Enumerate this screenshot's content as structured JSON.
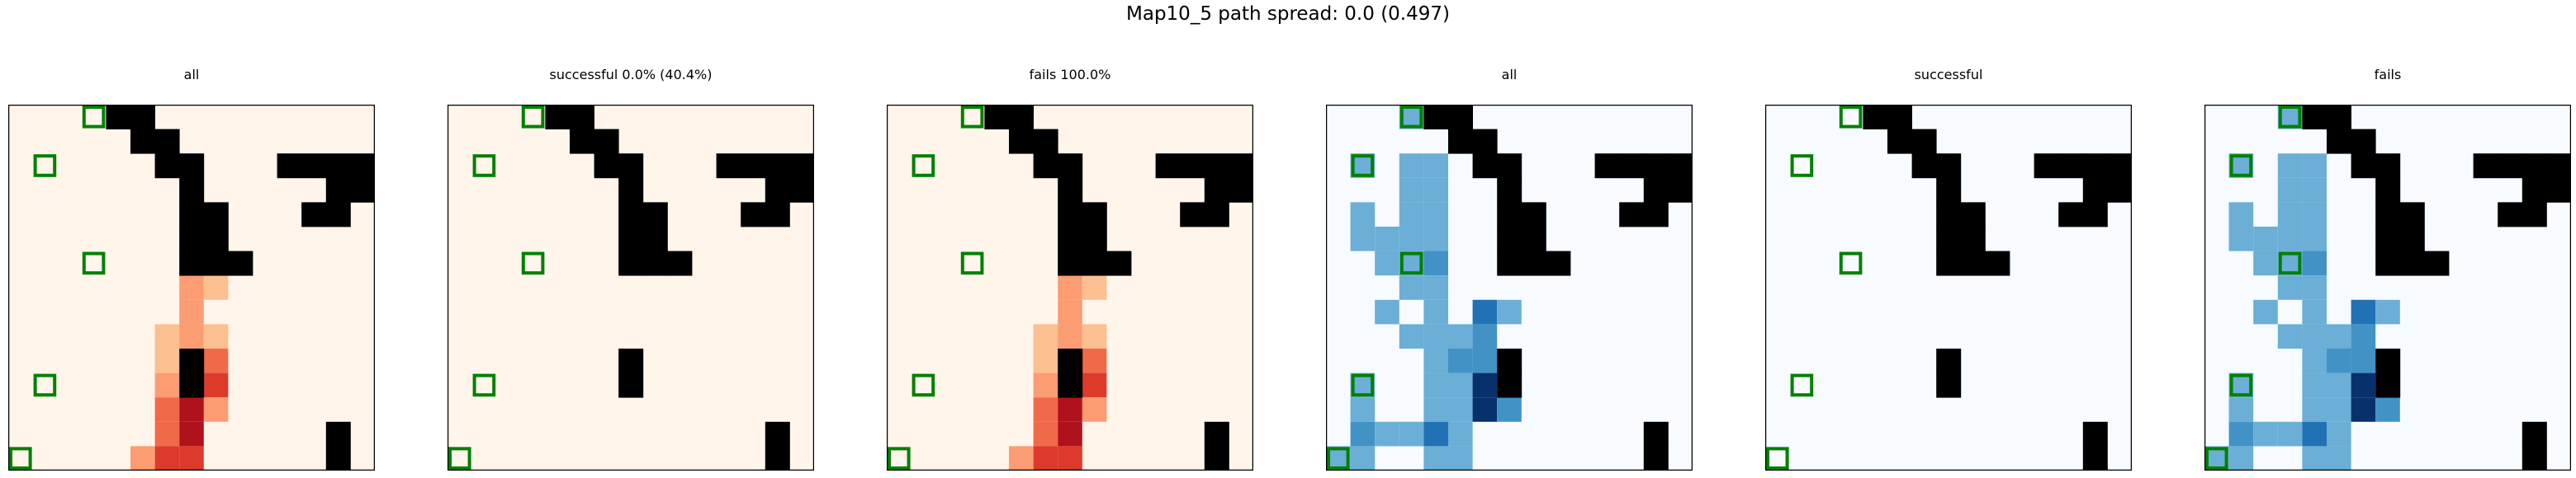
{
  "figure": {
    "suptitle": "Map10_5 path spread: 0.0 (0.497)"
  },
  "colors": {
    "wall": "#000000",
    "goal_marker": "#008000",
    "frame": "#000000"
  },
  "chart_data": [
    {
      "type": "heatmap",
      "title": "all",
      "colormap": "Oranges/Reds",
      "grid_size": [
        15,
        15
      ],
      "walls": [
        [
          4,
          0
        ],
        [
          5,
          0
        ],
        [
          5,
          1
        ],
        [
          6,
          1
        ],
        [
          11,
          2
        ],
        [
          12,
          2
        ],
        [
          13,
          2
        ],
        [
          14,
          2
        ],
        [
          6,
          2
        ],
        [
          7,
          2
        ],
        [
          13,
          3
        ],
        [
          14,
          3
        ],
        [
          7,
          3
        ],
        [
          7,
          4
        ],
        [
          8,
          4
        ],
        [
          12,
          4
        ],
        [
          13,
          4
        ],
        [
          7,
          5
        ],
        [
          8,
          5
        ],
        [
          7,
          6
        ],
        [
          8,
          6
        ],
        [
          9,
          6
        ],
        [
          7,
          10
        ],
        [
          7,
          11
        ],
        [
          13,
          13
        ],
        [
          13,
          14
        ]
      ],
      "goal_markers": [
        [
          3,
          0
        ],
        [
          1,
          2
        ],
        [
          3,
          6
        ],
        [
          1,
          11
        ],
        [
          0,
          14
        ]
      ],
      "cells": [
        [
          7,
          7,
          0.25
        ],
        [
          7,
          8,
          0.25
        ],
        [
          8,
          7,
          0.12
        ],
        [
          6,
          9,
          0.15
        ],
        [
          6,
          10,
          0.15
        ],
        [
          7,
          9,
          0.25
        ],
        [
          8,
          9,
          0.15
        ],
        [
          8,
          10,
          0.55
        ],
        [
          8,
          11,
          0.6
        ],
        [
          8,
          12,
          0.35
        ],
        [
          6,
          11,
          0.25
        ],
        [
          6,
          12,
          0.55
        ],
        [
          6,
          13,
          0.55
        ],
        [
          6,
          14,
          0.6
        ],
        [
          7,
          12,
          0.85
        ],
        [
          7,
          13,
          0.85
        ],
        [
          7,
          14,
          0.7
        ],
        [
          5,
          14,
          0.25
        ]
      ]
    },
    {
      "type": "heatmap",
      "title": "successful 0.0% (40.4%)",
      "colormap": "Oranges/Reds",
      "grid_size": [
        15,
        15
      ],
      "walls": [
        [
          4,
          0
        ],
        [
          5,
          0
        ],
        [
          5,
          1
        ],
        [
          6,
          1
        ],
        [
          11,
          2
        ],
        [
          12,
          2
        ],
        [
          13,
          2
        ],
        [
          14,
          2
        ],
        [
          6,
          2
        ],
        [
          7,
          2
        ],
        [
          13,
          3
        ],
        [
          14,
          3
        ],
        [
          7,
          3
        ],
        [
          7,
          4
        ],
        [
          8,
          4
        ],
        [
          12,
          4
        ],
        [
          13,
          4
        ],
        [
          7,
          5
        ],
        [
          8,
          5
        ],
        [
          7,
          6
        ],
        [
          8,
          6
        ],
        [
          9,
          6
        ],
        [
          7,
          10
        ],
        [
          7,
          11
        ],
        [
          13,
          13
        ],
        [
          13,
          14
        ]
      ],
      "goal_markers": [
        [
          3,
          0
        ],
        [
          1,
          2
        ],
        [
          3,
          6
        ],
        [
          1,
          11
        ],
        [
          0,
          14
        ]
      ],
      "cells": []
    },
    {
      "type": "heatmap",
      "title": "fails 100.0%",
      "colormap": "Oranges/Reds",
      "grid_size": [
        15,
        15
      ],
      "walls": [
        [
          4,
          0
        ],
        [
          5,
          0
        ],
        [
          5,
          1
        ],
        [
          6,
          1
        ],
        [
          11,
          2
        ],
        [
          12,
          2
        ],
        [
          13,
          2
        ],
        [
          14,
          2
        ],
        [
          6,
          2
        ],
        [
          7,
          2
        ],
        [
          13,
          3
        ],
        [
          14,
          3
        ],
        [
          7,
          3
        ],
        [
          7,
          4
        ],
        [
          8,
          4
        ],
        [
          12,
          4
        ],
        [
          13,
          4
        ],
        [
          7,
          5
        ],
        [
          8,
          5
        ],
        [
          7,
          6
        ],
        [
          8,
          6
        ],
        [
          9,
          6
        ],
        [
          7,
          10
        ],
        [
          7,
          11
        ],
        [
          13,
          13
        ],
        [
          13,
          14
        ]
      ],
      "goal_markers": [
        [
          3,
          0
        ],
        [
          1,
          2
        ],
        [
          3,
          6
        ],
        [
          1,
          11
        ],
        [
          0,
          14
        ]
      ],
      "cells": [
        [
          7,
          7,
          0.25
        ],
        [
          7,
          8,
          0.25
        ],
        [
          8,
          7,
          0.12
        ],
        [
          6,
          9,
          0.15
        ],
        [
          6,
          10,
          0.15
        ],
        [
          7,
          9,
          0.25
        ],
        [
          8,
          9,
          0.15
        ],
        [
          8,
          10,
          0.55
        ],
        [
          8,
          11,
          0.6
        ],
        [
          8,
          12,
          0.35
        ],
        [
          6,
          11,
          0.25
        ],
        [
          6,
          12,
          0.55
        ],
        [
          6,
          13,
          0.55
        ],
        [
          6,
          14,
          0.6
        ],
        [
          7,
          12,
          0.85
        ],
        [
          7,
          13,
          0.85
        ],
        [
          7,
          14,
          0.7
        ],
        [
          5,
          14,
          0.25
        ]
      ]
    },
    {
      "type": "heatmap",
      "title": "all",
      "colormap": "Blues",
      "grid_size": [
        15,
        15
      ],
      "walls": [
        [
          4,
          0
        ],
        [
          5,
          0
        ],
        [
          5,
          1
        ],
        [
          6,
          1
        ],
        [
          11,
          2
        ],
        [
          12,
          2
        ],
        [
          13,
          2
        ],
        [
          14,
          2
        ],
        [
          6,
          2
        ],
        [
          7,
          2
        ],
        [
          13,
          3
        ],
        [
          14,
          3
        ],
        [
          7,
          3
        ],
        [
          7,
          4
        ],
        [
          8,
          4
        ],
        [
          12,
          4
        ],
        [
          13,
          4
        ],
        [
          7,
          5
        ],
        [
          8,
          5
        ],
        [
          7,
          6
        ],
        [
          8,
          6
        ],
        [
          9,
          6
        ],
        [
          7,
          10
        ],
        [
          7,
          11
        ],
        [
          13,
          13
        ],
        [
          13,
          14
        ]
      ],
      "goal_markers": [
        [
          3,
          0
        ],
        [
          1,
          2
        ],
        [
          3,
          6
        ],
        [
          1,
          11
        ],
        [
          0,
          14
        ]
      ],
      "cells": [
        [
          3,
          0,
          0.25
        ],
        [
          1,
          2,
          0.25
        ],
        [
          3,
          2,
          0.25
        ],
        [
          4,
          2,
          0.25
        ],
        [
          3,
          3,
          0.25
        ],
        [
          4,
          3,
          0.25
        ],
        [
          1,
          4,
          0.25
        ],
        [
          3,
          4,
          0.25
        ],
        [
          4,
          4,
          0.25
        ],
        [
          1,
          5,
          0.25
        ],
        [
          2,
          5,
          0.25
        ],
        [
          3,
          5,
          0.25
        ],
        [
          4,
          5,
          0.25
        ],
        [
          2,
          6,
          0.25
        ],
        [
          3,
          6,
          0.25
        ],
        [
          4,
          6,
          0.55
        ],
        [
          3,
          7,
          0.25
        ],
        [
          4,
          7,
          0.25
        ],
        [
          2,
          8,
          0.25
        ],
        [
          4,
          8,
          0.25
        ],
        [
          6,
          8,
          0.7
        ],
        [
          7,
          8,
          0.25
        ],
        [
          3,
          9,
          0.25
        ],
        [
          4,
          9,
          0.25
        ],
        [
          5,
          9,
          0.25
        ],
        [
          6,
          9,
          0.5
        ],
        [
          4,
          10,
          0.25
        ],
        [
          5,
          10,
          0.5
        ],
        [
          6,
          10,
          0.5
        ],
        [
          1,
          11,
          0.25
        ],
        [
          4,
          11,
          0.25
        ],
        [
          5,
          11,
          0.25
        ],
        [
          6,
          11,
          0.95
        ],
        [
          1,
          12,
          0.25
        ],
        [
          4,
          12,
          0.25
        ],
        [
          5,
          12,
          0.25
        ],
        [
          6,
          12,
          0.95
        ],
        [
          7,
          12,
          0.5
        ],
        [
          1,
          13,
          0.5
        ],
        [
          2,
          13,
          0.25
        ],
        [
          3,
          13,
          0.25
        ],
        [
          4,
          13,
          0.7
        ],
        [
          5,
          13,
          0.25
        ],
        [
          0,
          14,
          0.25
        ],
        [
          1,
          14,
          0.25
        ],
        [
          4,
          14,
          0.25
        ],
        [
          5,
          14,
          0.25
        ]
      ]
    },
    {
      "type": "heatmap",
      "title": "successful",
      "colormap": "Blues",
      "grid_size": [
        15,
        15
      ],
      "walls": [
        [
          4,
          0
        ],
        [
          5,
          0
        ],
        [
          5,
          1
        ],
        [
          6,
          1
        ],
        [
          11,
          2
        ],
        [
          12,
          2
        ],
        [
          13,
          2
        ],
        [
          14,
          2
        ],
        [
          6,
          2
        ],
        [
          7,
          2
        ],
        [
          13,
          3
        ],
        [
          14,
          3
        ],
        [
          7,
          3
        ],
        [
          7,
          4
        ],
        [
          8,
          4
        ],
        [
          12,
          4
        ],
        [
          13,
          4
        ],
        [
          7,
          5
        ],
        [
          8,
          5
        ],
        [
          7,
          6
        ],
        [
          8,
          6
        ],
        [
          9,
          6
        ],
        [
          7,
          10
        ],
        [
          7,
          11
        ],
        [
          13,
          13
        ],
        [
          13,
          14
        ]
      ],
      "goal_markers": [
        [
          3,
          0
        ],
        [
          1,
          2
        ],
        [
          3,
          6
        ],
        [
          1,
          11
        ],
        [
          0,
          14
        ]
      ],
      "cells": []
    },
    {
      "type": "heatmap",
      "title": "fails",
      "colormap": "Blues",
      "grid_size": [
        15,
        15
      ],
      "walls": [
        [
          4,
          0
        ],
        [
          5,
          0
        ],
        [
          5,
          1
        ],
        [
          6,
          1
        ],
        [
          11,
          2
        ],
        [
          12,
          2
        ],
        [
          13,
          2
        ],
        [
          14,
          2
        ],
        [
          6,
          2
        ],
        [
          7,
          2
        ],
        [
          13,
          3
        ],
        [
          14,
          3
        ],
        [
          7,
          3
        ],
        [
          7,
          4
        ],
        [
          8,
          4
        ],
        [
          12,
          4
        ],
        [
          13,
          4
        ],
        [
          7,
          5
        ],
        [
          8,
          5
        ],
        [
          7,
          6
        ],
        [
          8,
          6
        ],
        [
          9,
          6
        ],
        [
          7,
          10
        ],
        [
          7,
          11
        ],
        [
          13,
          13
        ],
        [
          13,
          14
        ]
      ],
      "goal_markers": [
        [
          3,
          0
        ],
        [
          1,
          2
        ],
        [
          3,
          6
        ],
        [
          1,
          11
        ],
        [
          0,
          14
        ]
      ],
      "cells": [
        [
          3,
          0,
          0.25
        ],
        [
          1,
          2,
          0.25
        ],
        [
          3,
          2,
          0.25
        ],
        [
          4,
          2,
          0.25
        ],
        [
          3,
          3,
          0.25
        ],
        [
          4,
          3,
          0.25
        ],
        [
          1,
          4,
          0.25
        ],
        [
          3,
          4,
          0.25
        ],
        [
          4,
          4,
          0.25
        ],
        [
          1,
          5,
          0.25
        ],
        [
          2,
          5,
          0.25
        ],
        [
          3,
          5,
          0.25
        ],
        [
          4,
          5,
          0.25
        ],
        [
          2,
          6,
          0.25
        ],
        [
          3,
          6,
          0.25
        ],
        [
          4,
          6,
          0.55
        ],
        [
          3,
          7,
          0.25
        ],
        [
          4,
          7,
          0.25
        ],
        [
          2,
          8,
          0.25
        ],
        [
          4,
          8,
          0.25
        ],
        [
          6,
          8,
          0.7
        ],
        [
          7,
          8,
          0.25
        ],
        [
          3,
          9,
          0.25
        ],
        [
          4,
          9,
          0.25
        ],
        [
          5,
          9,
          0.25
        ],
        [
          6,
          9,
          0.5
        ],
        [
          4,
          10,
          0.25
        ],
        [
          5,
          10,
          0.5
        ],
        [
          6,
          10,
          0.5
        ],
        [
          1,
          11,
          0.25
        ],
        [
          4,
          11,
          0.25
        ],
        [
          5,
          11,
          0.25
        ],
        [
          6,
          11,
          0.95
        ],
        [
          1,
          12,
          0.25
        ],
        [
          4,
          12,
          0.25
        ],
        [
          5,
          12,
          0.25
        ],
        [
          6,
          12,
          0.95
        ],
        [
          7,
          12,
          0.5
        ],
        [
          1,
          13,
          0.5
        ],
        [
          2,
          13,
          0.25
        ],
        [
          3,
          13,
          0.25
        ],
        [
          4,
          13,
          0.7
        ],
        [
          5,
          13,
          0.25
        ],
        [
          0,
          14,
          0.25
        ],
        [
          1,
          14,
          0.25
        ],
        [
          4,
          14,
          0.25
        ],
        [
          5,
          14,
          0.25
        ]
      ]
    }
  ]
}
